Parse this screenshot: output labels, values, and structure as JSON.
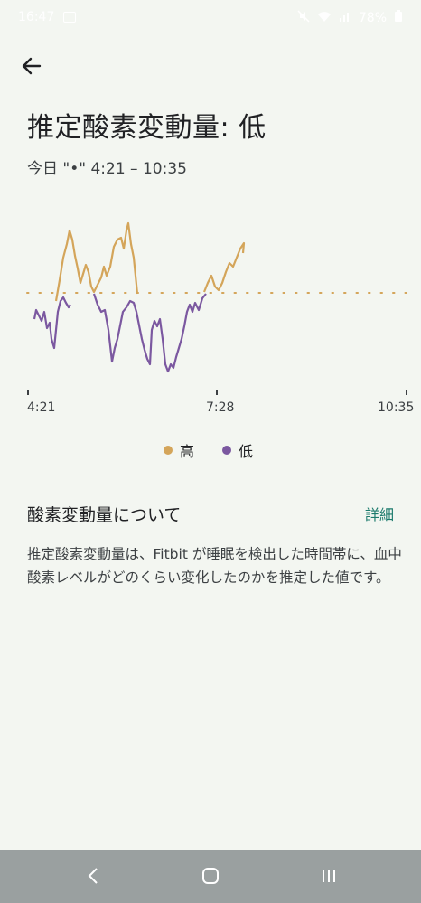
{
  "status_bar": {
    "time": "16:47",
    "battery": "78%",
    "icons": [
      "image-icon",
      "mute-icon",
      "wifi-icon",
      "signal-icon",
      "battery-icon"
    ]
  },
  "header": {
    "back_icon": "arrow-left-icon",
    "title": "推定酸素変動量: 低",
    "date_range": "今日 \"•\" 4:21 – 10:35"
  },
  "chart_data": {
    "type": "line",
    "x_ticks": [
      "4:21",
      "7:28",
      "10:35"
    ],
    "series": [
      {
        "name": "高",
        "color": "#d4a55a"
      },
      {
        "name": "低",
        "color": "#7b58a0"
      }
    ],
    "legend_position": "bottom-center",
    "grid": false,
    "threshold_line": "dotted",
    "x": [
      "4:21",
      "4:31",
      "4:41",
      "4:51",
      "5:01",
      "5:11",
      "5:21",
      "5:31",
      "5:41",
      "5:51",
      "6:01",
      "6:11",
      "6:21",
      "6:31",
      "6:41",
      "6:51",
      "7:01",
      "7:11",
      "7:21",
      "7:28",
      "7:41",
      "7:51"
    ],
    "values": [
      -0.6,
      -1.0,
      -0.5,
      0.8,
      1.3,
      0.5,
      -0.2,
      -1.6,
      -0.3,
      1.5,
      0.2,
      -1.1,
      -0.7,
      -1.0,
      -1.8,
      -0.9,
      -0.4,
      0.0,
      0.3,
      0.6,
      0.9,
      1.0
    ]
  },
  "legend": {
    "high_label": "高",
    "low_label": "低"
  },
  "about": {
    "title": "酸素変動量について",
    "details_label": "詳細",
    "description": "推定酸素変動量は、Fitbit が睡眠を検出した時間帯に、血中酸素レベルがどのくらい変化したのかを推定した値です。"
  },
  "nav_bar": {
    "back_icon": "chevron-left-icon",
    "home_icon": "home-circle-icon",
    "recents_icon": "recents-icon"
  }
}
